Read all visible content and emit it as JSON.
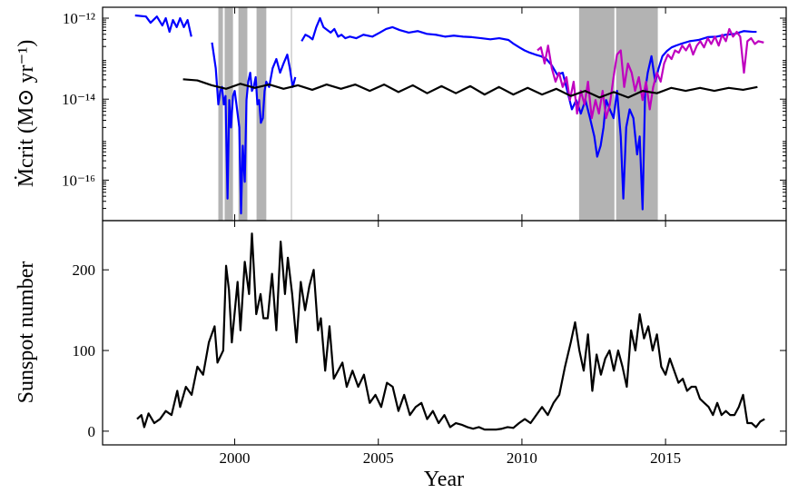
{
  "chart_data": [
    {
      "type": "line",
      "ylabel": "Ṁcrit (M⊙ yr⁻¹)",
      "log_scale": true,
      "xlim": [
        1995.4,
        2019.2
      ],
      "ylim": [
        1e-17,
        1.86e-12
      ],
      "yticks": [
        {
          "value": 1e-12,
          "label": "10⁻¹²"
        },
        {
          "value": 1e-14,
          "label": "10⁻¹⁴"
        },
        {
          "value": 1e-16,
          "label": "10⁻¹⁶"
        }
      ],
      "shaded_spans": [
        [
          1999.43,
          1999.59
        ],
        [
          1999.65,
          1999.94
        ],
        [
          2000.13,
          2000.44
        ],
        [
          2000.76,
          2001.1
        ],
        [
          2001.96,
          2001.99
        ],
        [
          2011.99,
          2013.22
        ],
        [
          2013.28,
          2014.73
        ]
      ],
      "span_color": "#b3b3b3",
      "series": [
        {
          "color": "#0000ff",
          "x": [
            1996.53,
            1996.91,
            1997.07,
            1997.29,
            1997.48,
            1997.6,
            1997.73,
            1997.85,
            1997.98,
            1998.1,
            1998.23,
            1998.36,
            1998.49,
            1998.8,
            1999.21,
            1999.34,
            1999.43,
            1999.5,
            1999.56,
            1999.62,
            1999.68,
            1999.75,
            1999.81,
            1999.87,
            1999.94,
            2000.0,
            2000.06,
            2000.16,
            2000.22,
            2000.28,
            2000.35,
            2000.41,
            2000.47,
            2000.54,
            2000.6,
            2000.66,
            2000.73,
            2000.79,
            2000.85,
            2000.91,
            2000.98,
            2001.04,
            2001.1,
            2001.2,
            2001.32,
            2001.45,
            2001.58,
            2001.7,
            2001.83,
            2001.92,
            2002.02,
            2002.11,
            2002.2,
            2002.33,
            2002.46,
            2002.59,
            2002.71,
            2002.84,
            2002.97,
            2003.09,
            2003.22,
            2003.34,
            2003.47,
            2003.6,
            2003.72,
            2003.85,
            2004.01,
            2004.23,
            2004.48,
            2004.79,
            2005.05,
            2005.27,
            2005.49,
            2005.74,
            2006.06,
            2006.37,
            2006.69,
            2007.0,
            2007.32,
            2007.63,
            2007.95,
            2008.26,
            2008.58,
            2008.9,
            2009.21,
            2009.53,
            2009.72,
            2009.91,
            2010.09,
            2010.28,
            2010.47,
            2010.66,
            2010.85,
            2011.04,
            2011.23,
            2011.42,
            2011.58,
            2011.74,
            2011.89,
            2012.05,
            2012.21,
            2012.37,
            2012.52,
            2012.62,
            2012.74,
            2012.84,
            2012.93,
            2013.06,
            2013.19,
            2013.31,
            2013.44,
            2013.53,
            2013.63,
            2013.75,
            2013.88,
            2014.01,
            2014.1,
            2014.2,
            2014.29,
            2014.38,
            2014.51,
            2014.64,
            2014.76,
            2014.89,
            2015.05,
            2015.21,
            2015.36,
            2015.52,
            2015.84,
            2016.15,
            2016.47,
            2016.78,
            2017.1,
            2017.41,
            2017.73,
            2018.04,
            2018.17
          ],
          "values": [
            1.17e-12,
            1.1e-12,
            7.7e-13,
            1.1e-12,
            6.6e-13,
            1e-12,
            4.6e-13,
            9e-13,
            6e-13,
            1e-12,
            6e-13,
            9e-13,
            3.5e-13,
            null,
            2.5e-13,
            5.8e-14,
            7.4e-15,
            1.6e-14,
            2e-14,
            7.4e-15,
            1.2e-14,
            3.5e-17,
            9.5e-15,
            2e-15,
            1.2e-14,
            1.6e-14,
            7.4e-15,
            2e-15,
            1.5e-17,
            7.1e-16,
            9.1e-17,
            9.5e-15,
            2.7e-14,
            4.5e-14,
            1.6e-14,
            2e-14,
            3.5e-14,
            7.4e-15,
            9.5e-15,
            2.6e-15,
            3.4e-15,
            1.6e-14,
            2.7e-14,
            2e-14,
            5.8e-14,
            9.8e-14,
            4.5e-14,
            7.6e-14,
            1.26e-13,
            5.8e-14,
            2e-14,
            3.5e-14,
            null,
            2.7e-13,
            3.9e-13,
            3.5e-13,
            3e-13,
            6e-13,
            1e-12,
            6e-13,
            5.1e-13,
            4.4e-13,
            5.4e-13,
            3.5e-13,
            3.9e-13,
            3.2e-13,
            3.5e-13,
            3.2e-13,
            3.9e-13,
            3.5e-13,
            4.4e-13,
            5.4e-13,
            6e-13,
            5.1e-13,
            4.4e-13,
            4.8e-13,
            4.1e-13,
            3.9e-13,
            3.5e-13,
            3.7e-13,
            3.5e-13,
            3.4e-13,
            3.2e-13,
            3e-13,
            3.2e-13,
            2.9e-13,
            2.3e-13,
            1.9e-13,
            1.6e-13,
            1.4e-13,
            1.26e-13,
            1.15e-13,
            9.8e-14,
            6.8e-14,
            4e-14,
            4.5e-14,
            1.6e-14,
            5.6e-15,
            9.5e-15,
            4.4e-15,
            9.5e-15,
            3.4e-15,
            1.2e-15,
            3.8e-16,
            7.1e-16,
            2e-15,
            9.5e-15,
            5.6e-15,
            3.4e-15,
            1.6e-14,
            1.2e-15,
            3.5e-17,
            2e-15,
            5.6e-15,
            3.4e-15,
            4.3e-16,
            1.2e-15,
            1.9e-17,
            1.6e-14,
            4.5e-14,
            1.15e-13,
            2.7e-14,
            5.8e-14,
            1.15e-13,
            1.55e-13,
            1.9e-13,
            2.1e-13,
            2.3e-13,
            2.7e-13,
            2.9e-13,
            3.4e-13,
            3.5e-13,
            3.9e-13,
            4.1e-13,
            4.8e-13,
            4.6e-13,
            4.6e-13
          ]
        },
        {
          "color": "#bf00bf",
          "x": [
            2010.54,
            2010.66,
            2010.79,
            2010.91,
            2011.04,
            2011.17,
            2011.29,
            2011.42,
            2011.55,
            2011.67,
            2011.8,
            2011.92,
            2012.05,
            2012.18,
            2012.3,
            2012.43,
            2012.56,
            2012.68,
            2012.81,
            2012.93,
            2013.06,
            2013.19,
            2013.31,
            2013.44,
            2013.56,
            2013.69,
            2013.82,
            2013.94,
            2014.07,
            2014.2,
            2014.32,
            2014.45,
            2014.57,
            2014.7,
            2014.83,
            2014.95,
            2015.08,
            2015.21,
            2015.33,
            2015.46,
            2015.58,
            2015.71,
            2015.84,
            2015.96,
            2016.09,
            2016.21,
            2016.34,
            2016.47,
            2016.59,
            2016.72,
            2016.85,
            2016.97,
            2017.1,
            2017.22,
            2017.35,
            2017.48,
            2017.6,
            2017.73,
            2017.85,
            2017.98,
            2018.11,
            2018.23,
            2018.42
          ],
          "values": [
            1.6e-13,
            1.9e-13,
            7.6e-14,
            2.1e-13,
            5.8e-14,
            2.7e-14,
            4.5e-14,
            2e-14,
            3.5e-14,
            9.5e-15,
            2.7e-14,
            4.4e-15,
            1.6e-14,
            7.4e-15,
            2.7e-14,
            3.4e-15,
            9.5e-15,
            4.4e-15,
            1.6e-14,
            3.4e-15,
            7.4e-15,
            3.5e-14,
            1.26e-13,
            1.6e-13,
            2e-14,
            7.6e-14,
            4.5e-14,
            1.6e-14,
            3.5e-14,
            9.5e-15,
            2.7e-14,
            5.6e-15,
            2e-14,
            4.5e-14,
            2.7e-14,
            7.6e-14,
            1.26e-13,
            9.8e-14,
            1.6e-13,
            1.4e-13,
            2.1e-13,
            1.6e-13,
            2.3e-13,
            1.26e-13,
            2.1e-13,
            2.7e-13,
            1.9e-13,
            3.2e-13,
            2.3e-13,
            3.5e-13,
            2.1e-13,
            3.9e-13,
            2.7e-13,
            5.4e-13,
            3.5e-13,
            4.6e-13,
            3.5e-13,
            4.5e-14,
            2.7e-13,
            3.2e-13,
            2.3e-13,
            2.7e-13,
            2.5e-13
          ]
        },
        {
          "color": "#000000",
          "x": [
            1998.2,
            1998.7,
            1999.2,
            1999.7,
            2000.2,
            2000.7,
            2001.2,
            2001.7,
            2002.2,
            2002.7,
            2003.2,
            2003.7,
            2004.2,
            2004.7,
            2005.2,
            2005.7,
            2006.2,
            2006.7,
            2007.2,
            2007.7,
            2008.2,
            2008.7,
            2009.2,
            2009.7,
            2010.2,
            2010.7,
            2011.2,
            2011.7,
            2012.2,
            2012.7,
            2013.2,
            2013.7,
            2014.2,
            2014.7,
            2015.2,
            2015.7,
            2016.2,
            2016.7,
            2017.2,
            2017.7,
            2018.2
          ],
          "values": [
            3.1e-14,
            2.9e-14,
            2.2e-14,
            1.8e-14,
            2.4e-14,
            1.9e-14,
            2.3e-14,
            1.8e-14,
            2.2e-14,
            1.7e-14,
            2.3e-14,
            1.8e-14,
            2.3e-14,
            1.6e-14,
            2.3e-14,
            1.5e-14,
            2.2e-14,
            1.4e-14,
            2.1e-14,
            1.4e-14,
            2.1e-14,
            1.3e-14,
            2e-14,
            1.3e-14,
            1.9e-14,
            1.3e-14,
            1.8e-14,
            1.2e-14,
            1.6e-14,
            1.1e-14,
            1.5e-14,
            1.1e-14,
            1.6e-14,
            1.4e-14,
            1.9e-14,
            1.6e-14,
            1.9e-14,
            1.6e-14,
            1.9e-14,
            1.7e-14,
            2e-14
          ]
        }
      ]
    },
    {
      "type": "line",
      "ylabel": "Sunspot number",
      "xlabel": "Year",
      "xlim": [
        1995.4,
        2019.2
      ],
      "ylim": [
        -17,
        261
      ],
      "xticks": [
        2000,
        2005,
        2010,
        2015
      ],
      "yticks": [
        0,
        100,
        200
      ],
      "series": [
        {
          "color": "#000000",
          "x": [
            1996.6,
            1996.75,
            1996.85,
            1997.0,
            1997.2,
            1997.4,
            1997.6,
            1997.8,
            1998.0,
            1998.1,
            1998.3,
            1998.5,
            1998.7,
            1998.9,
            1999.1,
            1999.3,
            1999.4,
            1999.6,
            1999.7,
            1999.8,
            1999.9,
            2000.1,
            2000.2,
            2000.35,
            2000.5,
            2000.6,
            2000.75,
            2000.9,
            2001.0,
            2001.15,
            2001.3,
            2001.45,
            2001.6,
            2001.75,
            2001.85,
            2002.0,
            2002.15,
            2002.3,
            2002.45,
            2002.6,
            2002.75,
            2002.9,
            2003.0,
            2003.15,
            2003.3,
            2003.45,
            2003.6,
            2003.75,
            2003.9,
            2004.1,
            2004.3,
            2004.5,
            2004.7,
            2004.9,
            2005.1,
            2005.3,
            2005.5,
            2005.7,
            2005.9,
            2006.1,
            2006.3,
            2006.5,
            2006.7,
            2006.9,
            2007.1,
            2007.3,
            2007.5,
            2007.7,
            2007.9,
            2008.1,
            2008.3,
            2008.5,
            2008.7,
            2008.9,
            2009.1,
            2009.3,
            2009.5,
            2009.7,
            2009.9,
            2010.1,
            2010.3,
            2010.5,
            2010.7,
            2010.9,
            2011.1,
            2011.3,
            2011.5,
            2011.7,
            2011.85,
            2012.0,
            2012.15,
            2012.3,
            2012.45,
            2012.6,
            2012.75,
            2012.9,
            2013.05,
            2013.2,
            2013.35,
            2013.5,
            2013.65,
            2013.8,
            2013.95,
            2014.1,
            2014.25,
            2014.4,
            2014.55,
            2014.7,
            2014.85,
            2015.0,
            2015.15,
            2015.3,
            2015.45,
            2015.6,
            2015.75,
            2015.9,
            2016.05,
            2016.2,
            2016.35,
            2016.5,
            2016.65,
            2016.8,
            2016.95,
            2017.1,
            2017.25,
            2017.4,
            2017.55,
            2017.7,
            2017.85,
            2018.0,
            2018.15,
            2018.3,
            2018.45
          ],
          "values": [
            15,
            20,
            5,
            22,
            10,
            15,
            25,
            20,
            50,
            30,
            55,
            45,
            80,
            70,
            110,
            130,
            85,
            100,
            205,
            175,
            110,
            185,
            125,
            210,
            170,
            245,
            145,
            170,
            140,
            140,
            195,
            125,
            235,
            170,
            215,
            170,
            110,
            185,
            150,
            180,
            200,
            125,
            140,
            75,
            130,
            65,
            75,
            85,
            55,
            75,
            55,
            70,
            35,
            45,
            30,
            60,
            55,
            25,
            45,
            20,
            30,
            35,
            15,
            25,
            10,
            20,
            5,
            10,
            8,
            5,
            3,
            5,
            2,
            2,
            2,
            3,
            5,
            4,
            10,
            15,
            10,
            20,
            30,
            20,
            35,
            45,
            80,
            110,
            135,
            100,
            75,
            120,
            50,
            95,
            70,
            90,
            100,
            75,
            100,
            80,
            55,
            125,
            100,
            145,
            115,
            130,
            100,
            120,
            80,
            70,
            90,
            75,
            60,
            65,
            50,
            55,
            55,
            40,
            35,
            30,
            20,
            35,
            20,
            25,
            20,
            20,
            30,
            45,
            10,
            10,
            5,
            12,
            15
          ]
        }
      ]
    }
  ]
}
